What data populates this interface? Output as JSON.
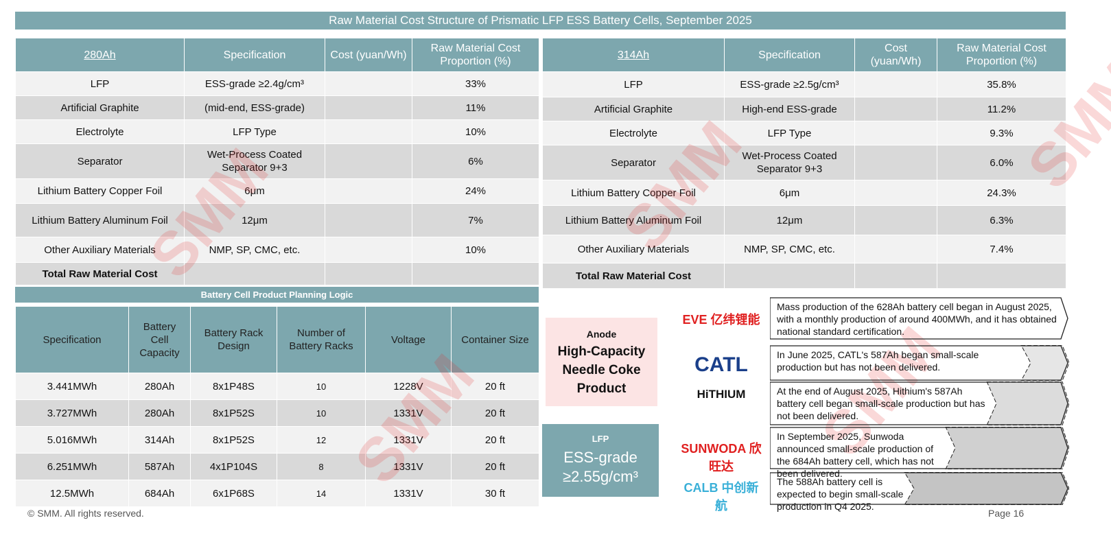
{
  "title": "Raw Material Cost Structure of Prismatic LFP ESS Battery Cells, September 2025",
  "colors": {
    "header": "#7da7ae",
    "row_light": "#f2f2f2",
    "row_dark": "#d9d9d9",
    "anode_bg": "#fce4e4",
    "watermark": "#e62828"
  },
  "table_280": {
    "headers": [
      "280Ah",
      "Specification",
      "Cost (yuan/Wh)",
      "Raw Material Cost Proportion (%)"
    ],
    "rows": [
      [
        "LFP",
        "ESS-grade ≥2.4g/cm³",
        "",
        "33%"
      ],
      [
        "Artificial Graphite",
        "(mid-end, ESS-grade)",
        "",
        "11%"
      ],
      [
        "Electrolyte",
        "LFP Type",
        "",
        "10%"
      ],
      [
        "Separator",
        "Wet-Process Coated Separator 9+3",
        "",
        "6%"
      ],
      [
        "Lithium Battery Copper Foil",
        "6μm",
        "",
        "24%"
      ],
      [
        "Lithium Battery Aluminum Foil",
        "12μm",
        "",
        "7%"
      ],
      [
        "Other Auxiliary Materials",
        "NMP, SP, CMC, etc.",
        "",
        "10%"
      ],
      [
        "Total Raw Material Cost",
        "",
        "",
        ""
      ]
    ]
  },
  "table_314": {
    "headers": [
      "314Ah",
      "Specification",
      "Cost (yuan/Wh)",
      "Raw Material Cost Proportion (%)"
    ],
    "rows": [
      [
        "LFP",
        "ESS-grade ≥2.5g/cm³",
        "",
        "35.8%"
      ],
      [
        "Artificial Graphite",
        "High-end ESS-grade",
        "",
        "11.2%"
      ],
      [
        "Electrolyte",
        "LFP Type",
        "",
        "9.3%"
      ],
      [
        "Separator",
        "Wet-Process Coated Separator 9+3",
        "",
        "6.0%"
      ],
      [
        "Lithium Battery Copper Foil",
        "6μm",
        "",
        "24.3%"
      ],
      [
        "Lithium Battery Aluminum Foil",
        "12μm",
        "",
        "6.3%"
      ],
      [
        "Other Auxiliary Materials",
        "NMP, SP, CMC, etc.",
        "",
        "7.4%"
      ],
      [
        "Total Raw Material Cost",
        "",
        "",
        ""
      ]
    ]
  },
  "planning": {
    "title": "Battery Cell Product Planning Logic",
    "headers": [
      "Specification",
      "Battery Cell Capacity",
      "Battery Rack Design",
      "Number of Battery Racks",
      "Voltage",
      "Container Size"
    ],
    "rows": [
      [
        "3.441MWh",
        "280Ah",
        "8x1P48S",
        "10",
        "1228V",
        "20 ft"
      ],
      [
        "3.727MWh",
        "280Ah",
        "8x1P52S",
        "10",
        "1331V",
        "20 ft"
      ],
      [
        "5.016MWh",
        "314Ah",
        "8x1P52S",
        "12",
        "1331V",
        "20 ft"
      ],
      [
        "6.251MWh",
        "587Ah",
        "4x1P104S",
        "8",
        "1331V",
        "20 ft"
      ],
      [
        "12.5MWh",
        "684Ah",
        "6x1P68S",
        "14",
        "1331V",
        "30 ft"
      ]
    ]
  },
  "anode": {
    "label": "Anode",
    "product": "High-Capacity Needle Coke Product"
  },
  "lfp": {
    "label": "LFP",
    "grade": "ESS-grade ≥2.55g/cm³"
  },
  "companies": [
    {
      "logo": "EVE 亿纬锂能",
      "color": "#e02020",
      "text": "Mass production of the 628Ah battery cell began in August 2025, with a monthly production of around 400MWh, and it has obtained national standard certification."
    },
    {
      "logo": "CATL",
      "color": "#1a3f8a",
      "text": "In June 2025, CATL's 587Ah began small-scale production but has not been delivered."
    },
    {
      "logo": "HiTHIUM",
      "color": "#111111",
      "text": "At the end of August 2025, Hithium's 587Ah battery cell began small-scale production but has not been delivered."
    },
    {
      "logo": "SUNWODA 欣旺达",
      "color": "#e02020",
      "text": "In September 2025, Sunwoda announced small-scale production of the 684Ah battery cell, which has not been delivered."
    },
    {
      "logo": "CALB 中创新航",
      "color": "#3ab0d8",
      "text": "The 588Ah battery cell is expected to begin small-scale production in Q4 2025."
    }
  ],
  "watermark": "SMM",
  "footer": {
    "copyright": "© SMM. All rights reserved.",
    "page": "Page 16"
  }
}
